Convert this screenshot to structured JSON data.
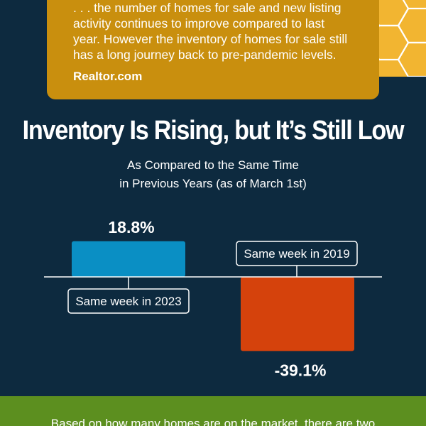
{
  "quote": {
    "text": ". . . the number of homes for sale and new listing\nactivity continues to improve compared to last\nyear. However the inventory of homes for sale still\nhas a long journey back to pre-pandemic levels.",
    "source": "Realtor.com"
  },
  "footer": {
    "text": "Based on how many homes are on the market, there are two"
  },
  "colors": {
    "background": "#0d2a3f",
    "quote_box": "#c98f0e",
    "honeycomb": "#f2b531",
    "positive_bar": "#0a8fc4",
    "negative_bar": "#d5420c",
    "footer_band": "#5c8f1f"
  },
  "chart_data": {
    "type": "bar",
    "title": "Inventory Is Rising, but It’s Still Low",
    "subtitle": "As Compared to the Same Time\nin Previous Years (as of March 1st)",
    "categories": [
      "Same week in 2023",
      "Same week in 2019"
    ],
    "values": [
      18.8,
      -39.1
    ],
    "value_labels": [
      "18.8%",
      "-39.1%"
    ],
    "ylim": [
      -45,
      45
    ],
    "grid": false,
    "baseline": 0
  }
}
